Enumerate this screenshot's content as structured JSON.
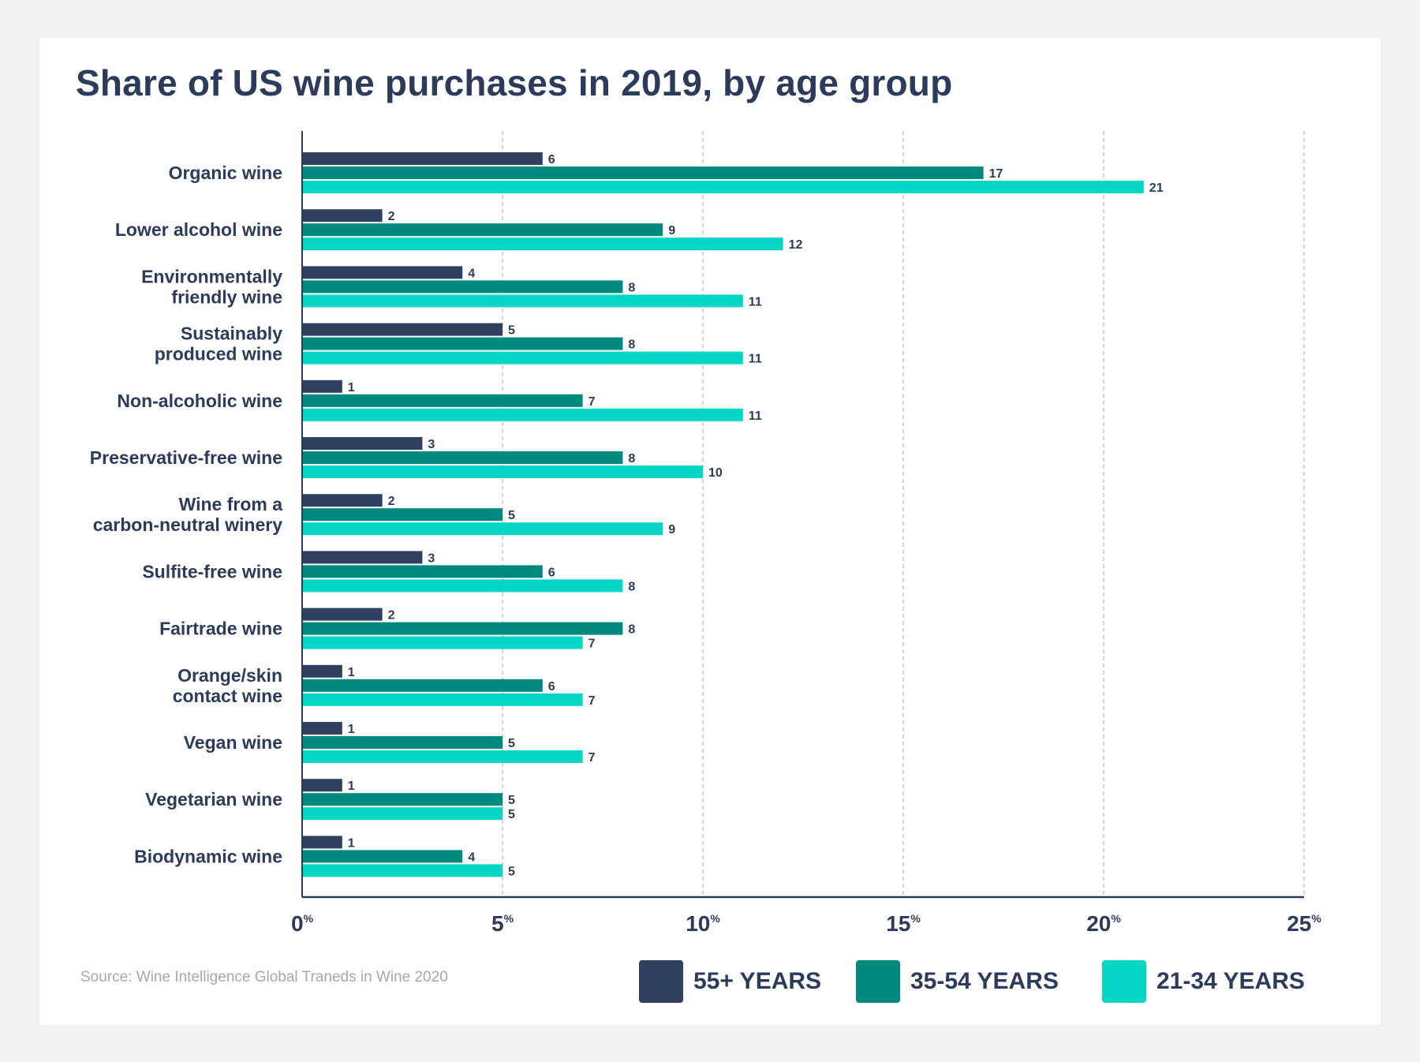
{
  "chart_data": {
    "type": "bar",
    "orientation": "horizontal",
    "title": "Share of US wine purchases in 2019, by age group",
    "categories": [
      "Organic wine",
      "Lower alcohol wine",
      "Environmentally friendly wine",
      "Sustainably produced wine",
      "Non-alcoholic wine",
      "Preservative-free wine",
      "Wine from a carbon-neutral winery",
      "Sulfite-free wine",
      "Fairtrade wine",
      "Orange/skin contact wine",
      "Vegan wine",
      "Vegetarian wine",
      "Biodynamic wine"
    ],
    "category_lines": [
      [
        "Organic wine"
      ],
      [
        "Lower alcohol wine"
      ],
      [
        "Environmentally",
        "friendly wine"
      ],
      [
        "Sustainably",
        "produced wine"
      ],
      [
        "Non-alcoholic wine"
      ],
      [
        "Preservative-free wine"
      ],
      [
        "Wine from a",
        "carbon-neutral winery"
      ],
      [
        "Sulfite-free wine"
      ],
      [
        "Fairtrade wine"
      ],
      [
        "Orange/skin",
        "contact wine"
      ],
      [
        "Vegan wine"
      ],
      [
        "Vegetarian wine"
      ],
      [
        "Biodynamic wine"
      ]
    ],
    "series": [
      {
        "name": "55+ YEARS",
        "color": "#2f4060",
        "values": [
          6,
          2,
          4,
          5,
          1,
          3,
          2,
          3,
          2,
          1,
          1,
          1,
          1
        ]
      },
      {
        "name": "35-54 YEARS",
        "color": "#00897f",
        "values": [
          17,
          9,
          8,
          8,
          7,
          8,
          5,
          6,
          8,
          6,
          5,
          5,
          4
        ]
      },
      {
        "name": "21-34 YEARS",
        "color": "#06d6c4",
        "values": [
          21,
          12,
          11,
          11,
          11,
          10,
          9,
          8,
          7,
          7,
          7,
          5,
          5
        ]
      }
    ],
    "xlim": [
      0,
      25
    ],
    "xticks": [
      0,
      5,
      10,
      15,
      20,
      25
    ],
    "xtick_suffix": "%",
    "grid": "vertical dashed",
    "legend": "bottom-right"
  },
  "source": "Source: Wine Intelligence Global Traneds in Wine 2020"
}
